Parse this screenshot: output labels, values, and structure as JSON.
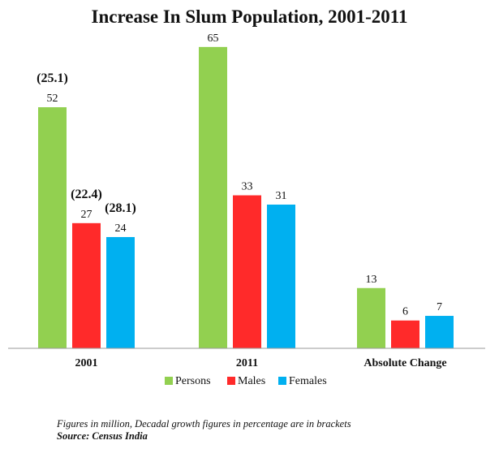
{
  "chart_data": {
    "type": "bar",
    "title": "Increase In Slum Population, 2001-2011",
    "categories": [
      "2001",
      "2011",
      "Absolute Change"
    ],
    "series": [
      {
        "name": "Persons",
        "color": "#92d050",
        "values": [
          52,
          65,
          13
        ]
      },
      {
        "name": "Males",
        "color": "#ff2a2a",
        "values": [
          27,
          33,
          6
        ]
      },
      {
        "name": "Females",
        "color": "#00b0f0",
        "values": [
          24,
          31,
          7
        ]
      }
    ],
    "annotations": [
      {
        "category": "2001",
        "series": "Persons",
        "text": "(25.1)"
      },
      {
        "category": "2001",
        "series": "Males",
        "text": "(22.4)"
      },
      {
        "category": "2001",
        "series": "Females",
        "text": "(28.1)"
      }
    ],
    "ylim": [
      0,
      70
    ],
    "grid": false,
    "legend": "bottom",
    "xlabel": "",
    "ylabel": ""
  },
  "footer": {
    "note": "Figures in million, Decadal growth figures in percentage are in brackets",
    "source": "Source: Census India"
  }
}
